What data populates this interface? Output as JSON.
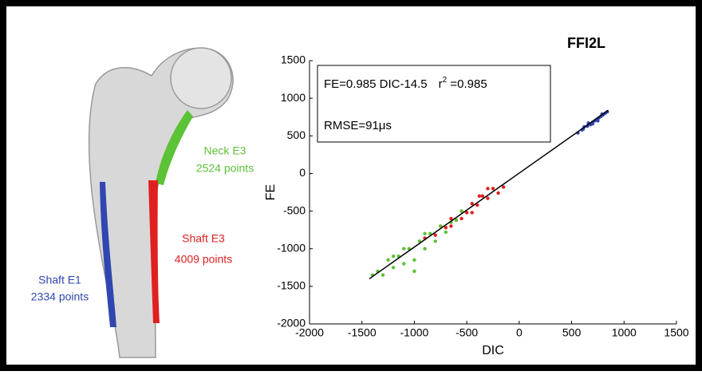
{
  "chart_data": {
    "type": "scatter",
    "title": "FFI2L",
    "xlabel": "DIC",
    "ylabel": "FE",
    "xlim": [
      -2000,
      1500
    ],
    "xticks": [
      -2000,
      -1500,
      -1000,
      -500,
      0,
      500,
      1000,
      1500
    ],
    "ylim": [
      -2000,
      1500
    ],
    "yticks": [
      -2000,
      -1500,
      -1000,
      -500,
      0,
      500,
      1000,
      1500
    ],
    "fit_text": "FE=0.985 DIC-14.5",
    "r2_text": "r",
    "r2_sup": "2",
    "r2_value": " =0.985",
    "rmse_text": "RMSE=91μs",
    "fit_line": {
      "color": "#000000",
      "x": [
        -1430,
        850
      ],
      "y": [
        -1400,
        840
      ]
    },
    "series": [
      {
        "name": "Shaft E1",
        "points_label": "2334 points",
        "color": "#3046b0",
        "x": [
          560,
          600,
          620,
          650,
          680,
          700,
          720,
          740,
          760,
          780,
          800,
          820,
          840,
          700,
          660,
          750,
          790,
          610
        ],
        "values": [
          540,
          580,
          620,
          630,
          650,
          680,
          700,
          720,
          740,
          760,
          780,
          800,
          820,
          660,
          670,
          700,
          790,
          590
        ]
      },
      {
        "name": "Shaft E3",
        "points_label": "4009 points",
        "color": "#e02020",
        "x": [
          -800,
          -750,
          -700,
          -650,
          -600,
          -550,
          -500,
          -450,
          -400,
          -350,
          -300,
          -250,
          -200,
          -150,
          -450,
          -550,
          -300,
          -650,
          -900,
          -380
        ],
        "values": [
          -820,
          -700,
          -720,
          -600,
          -620,
          -500,
          -520,
          -400,
          -420,
          -300,
          -330,
          -200,
          -260,
          -180,
          -520,
          -600,
          -200,
          -700,
          -860,
          -300
        ]
      },
      {
        "name": "Neck E3",
        "points_label": "2524 points",
        "color": "#5cc236",
        "x": [
          -1400,
          -1350,
          -1300,
          -1250,
          -1200,
          -1150,
          -1100,
          -1050,
          -1000,
          -950,
          -900,
          -850,
          -800,
          -750,
          -700,
          -650,
          -600,
          -1000,
          -1100,
          -900,
          -1200,
          -550
        ],
        "values": [
          -1350,
          -1300,
          -1350,
          -1150,
          -1250,
          -1100,
          -1200,
          -1000,
          -1150,
          -900,
          -1000,
          -800,
          -900,
          -700,
          -780,
          -650,
          -620,
          -1300,
          -1000,
          -800,
          -1100,
          -500
        ]
      }
    ]
  }
}
